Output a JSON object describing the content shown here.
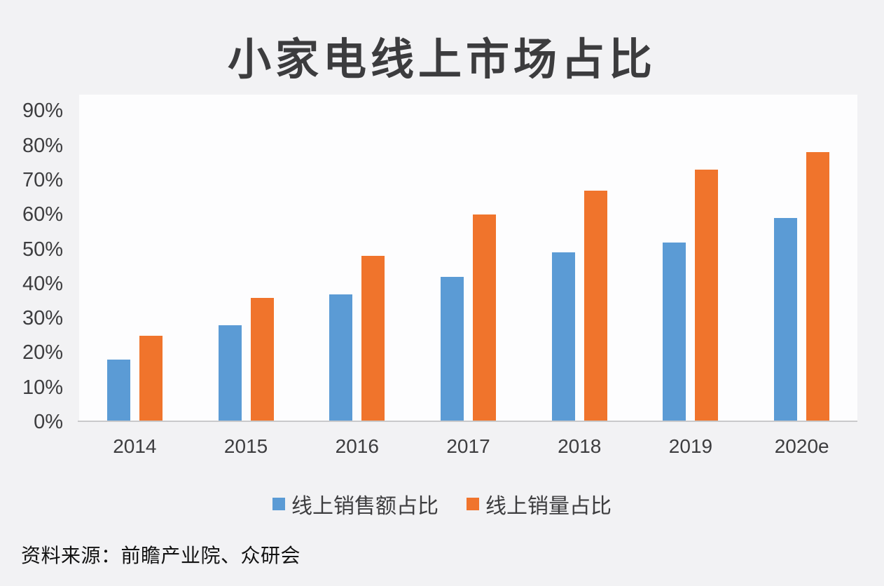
{
  "chart_data": {
    "type": "bar",
    "title": "小家电线上市场占比",
    "categories": [
      "2014",
      "2015",
      "2016",
      "2017",
      "2018",
      "2019",
      "2020e"
    ],
    "series": [
      {
        "name": "线上销售额占比",
        "color": "#5b9bd5",
        "values": [
          18,
          28,
          37,
          42,
          49,
          52,
          59
        ]
      },
      {
        "name": "线上销量占比",
        "color": "#f0742c",
        "values": [
          25,
          36,
          48,
          60,
          67,
          73,
          78
        ]
      }
    ],
    "xlabel": "",
    "ylabel": "",
    "ylim": [
      0,
      90
    ],
    "ytick_step": 10,
    "ytick_labels": [
      "0%",
      "10%",
      "20%",
      "30%",
      "40%",
      "50%",
      "60%",
      "70%",
      "80%",
      "90%"
    ],
    "grid": false,
    "legend_position": "bottom"
  },
  "source_note": "资料来源：前瞻产业院、众研会",
  "colors": {
    "background": "#f2f2f4",
    "plot_background": "#fdfdfe",
    "axis_line": "#c9c9cb",
    "text": "#3d3d3f",
    "series_blue": "#5b9bd5",
    "series_orange": "#f0742c"
  }
}
